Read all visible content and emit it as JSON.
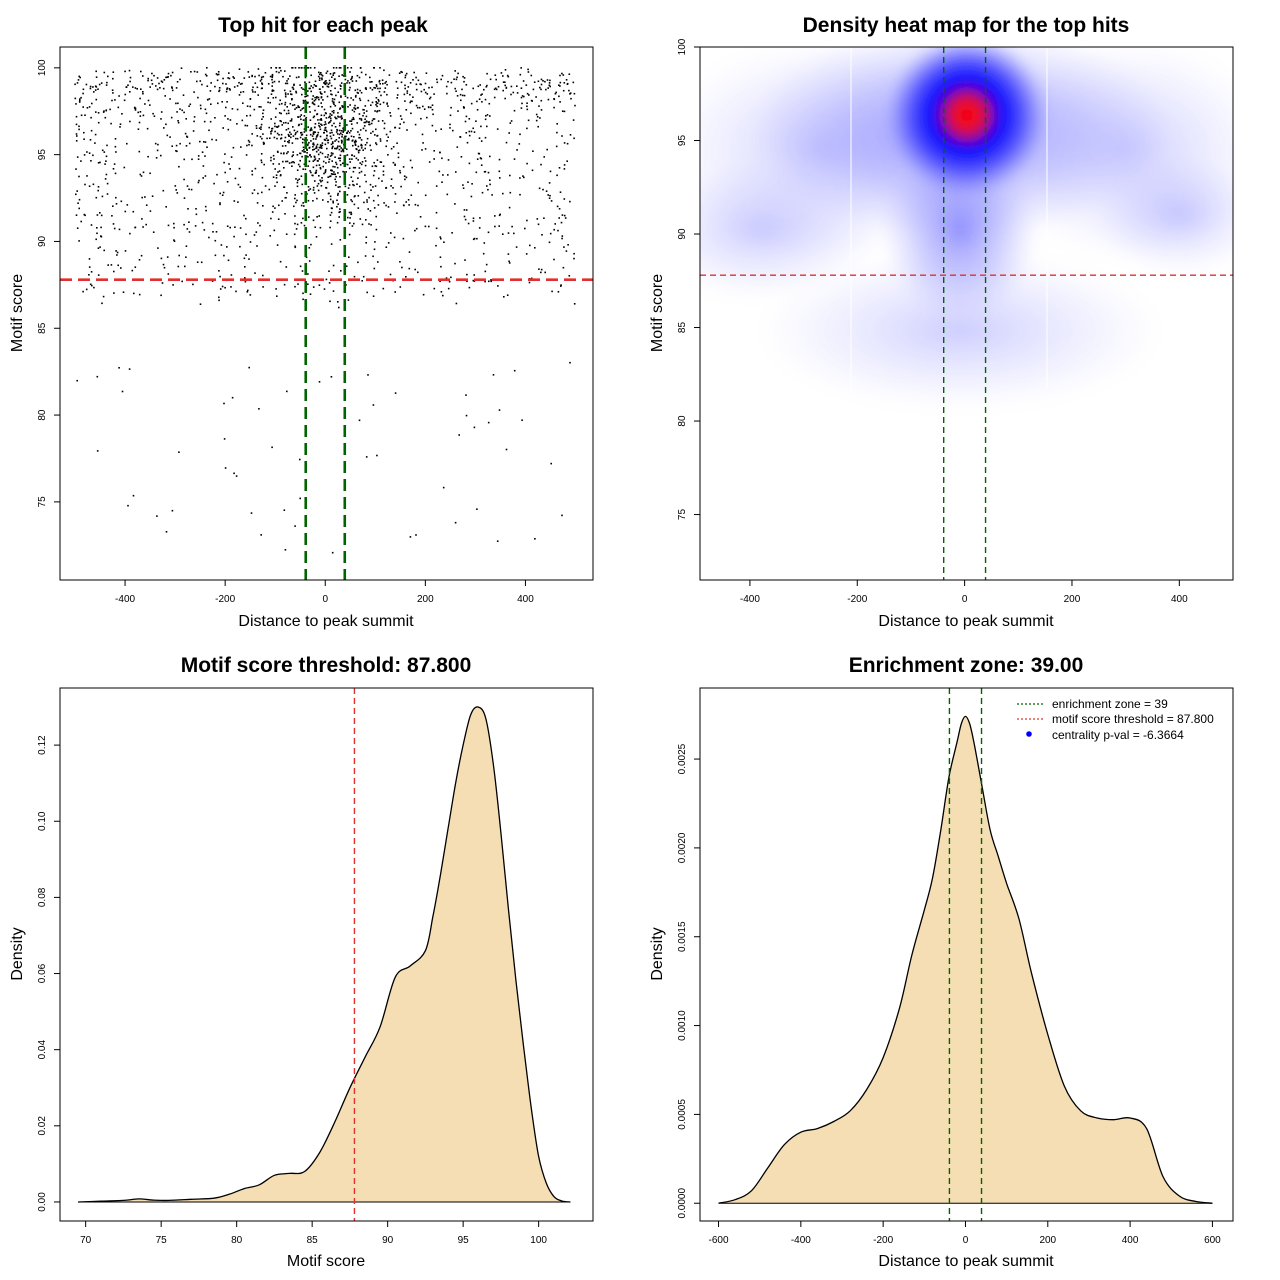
{
  "chart_data": [
    {
      "type": "scatter",
      "title": "Top hit for each peak",
      "xlabel": "Distance to peak summit",
      "ylabel": "Motif score",
      "xlim": [
        -530,
        535
      ],
      "ylim": [
        70.5,
        101.2
      ],
      "xticks": [
        -400,
        -200,
        0,
        200,
        400
      ],
      "yticks": [
        75,
        80,
        85,
        90,
        95,
        100
      ],
      "grid": false,
      "point_count": 2200,
      "point_distribution": {
        "x_range": [
          -500,
          500
        ],
        "y_range": [
          71.5,
          100
        ],
        "dense_center_x": 0,
        "dense_center_y": 96
      },
      "threshold_y": 87.8,
      "zone_x": [
        -39,
        39
      ],
      "colors": {
        "points": "#000000",
        "threshold": "#e03030",
        "zone": "#006400"
      }
    },
    {
      "type": "heatmap",
      "title": "Density heat map for the top hits",
      "xlabel": "Distance to peak summit",
      "ylabel": "Motif score",
      "xlim": [
        -493,
        500
      ],
      "ylim": [
        71.5,
        100
      ],
      "xticks": [
        -400,
        -200,
        0,
        200,
        400
      ],
      "yticks": [
        75,
        80,
        85,
        90,
        95,
        100
      ],
      "grid": false,
      "density_peak": {
        "x": 10,
        "y": 96.3
      },
      "threshold_y": 87.8,
      "zone_x": [
        -39,
        39
      ],
      "colors": {
        "low": "#ffffff",
        "mid": "#0000ff",
        "high": "#ff0000",
        "threshold": "#e03030",
        "zone": "#006400"
      }
    },
    {
      "type": "area",
      "title": "Motif score threshold: 87.800",
      "xlabel": "Motif score",
      "ylabel": "Density",
      "xlim": [
        68.3,
        103.6
      ],
      "ylim": [
        -0.005,
        0.135
      ],
      "xticks": [
        70,
        75,
        80,
        85,
        90,
        95,
        100
      ],
      "yticks": [
        0.0,
        0.02,
        0.04,
        0.06,
        0.08,
        0.1,
        0.12
      ],
      "ytick_labels": [
        "0.00",
        "0.02",
        "0.04",
        "0.06",
        "0.08",
        "0.10",
        "0.12"
      ],
      "grid": false,
      "x": [
        69.5,
        71,
        72.5,
        73.5,
        74.5,
        75.5,
        77,
        78.5,
        79.5,
        80.5,
        81.5,
        82.5,
        83.5,
        84.5,
        85.5,
        86.5,
        87.5,
        88.5,
        89.5,
        90.5,
        91.5,
        92.5,
        93,
        93.5,
        94,
        94.5,
        95,
        95.5,
        96,
        96.5,
        97,
        97.5,
        98,
        98.5,
        99,
        99.5,
        100,
        100.5,
        101,
        101.5,
        102.1
      ],
      "y": [
        0.0,
        0.0002,
        0.0004,
        0.0008,
        0.0005,
        0.0004,
        0.0007,
        0.001,
        0.002,
        0.0035,
        0.0045,
        0.007,
        0.0075,
        0.008,
        0.013,
        0.021,
        0.03,
        0.038,
        0.046,
        0.059,
        0.062,
        0.066,
        0.075,
        0.086,
        0.098,
        0.11,
        0.12,
        0.128,
        0.13,
        0.127,
        0.115,
        0.097,
        0.077,
        0.058,
        0.041,
        0.025,
        0.012,
        0.005,
        0.0015,
        0.0003,
        0.0
      ],
      "threshold_x": 87.8,
      "colors": {
        "fill": "#f5deb3",
        "line": "#000000",
        "threshold": "#e03030"
      }
    },
    {
      "type": "area",
      "title": "Enrichment zone: 39.00",
      "xlabel": "Distance to peak summit",
      "ylabel": "Density",
      "xlim": [
        -645,
        650
      ],
      "ylim": [
        -0.0001,
        0.0029
      ],
      "xticks": [
        -600,
        -400,
        -200,
        0,
        200,
        400,
        600
      ],
      "yticks": [
        0.0,
        0.0005,
        0.001,
        0.0015,
        0.002,
        0.0025
      ],
      "ytick_labels": [
        "0.0000",
        "0.0005",
        "0.0010",
        "0.0015",
        "0.0020",
        "0.0025"
      ],
      "grid": false,
      "x": [
        -600,
        -560,
        -520,
        -480,
        -440,
        -400,
        -360,
        -320,
        -280,
        -240,
        -200,
        -160,
        -130,
        -100,
        -80,
        -60,
        -40,
        -20,
        -10,
        0,
        10,
        20,
        40,
        60,
        80,
        100,
        130,
        160,
        200,
        240,
        280,
        320,
        360,
        400,
        440,
        480,
        520,
        560,
        600
      ],
      "y": [
        0.0,
        2e-05,
        7e-05,
        0.0002,
        0.00033,
        0.0004,
        0.00042,
        0.00046,
        0.00052,
        0.00064,
        0.00082,
        0.0011,
        0.0014,
        0.00165,
        0.00183,
        0.0021,
        0.0024,
        0.0026,
        0.0027,
        0.00274,
        0.0027,
        0.0026,
        0.00235,
        0.0021,
        0.00195,
        0.0018,
        0.0016,
        0.0013,
        0.00095,
        0.00066,
        0.00052,
        0.00048,
        0.00047,
        0.00048,
        0.00042,
        0.00015,
        4e-05,
        1e-05,
        0.0
      ],
      "zone_x": [
        -39,
        39
      ],
      "legend": {
        "position": "top-right",
        "entries": [
          {
            "label": "enrichment zone = 39",
            "symbol": "dotted-line",
            "color": "#006400"
          },
          {
            "label": "motif score threshold = 87.800",
            "symbol": "dotted-line",
            "color": "#e03030"
          },
          {
            "label": "centrality p-val = -6.3664",
            "symbol": "dot",
            "color": "#0000ff"
          }
        ]
      },
      "colors": {
        "fill": "#f5deb3",
        "line": "#000000",
        "zone": "#006400"
      }
    }
  ]
}
